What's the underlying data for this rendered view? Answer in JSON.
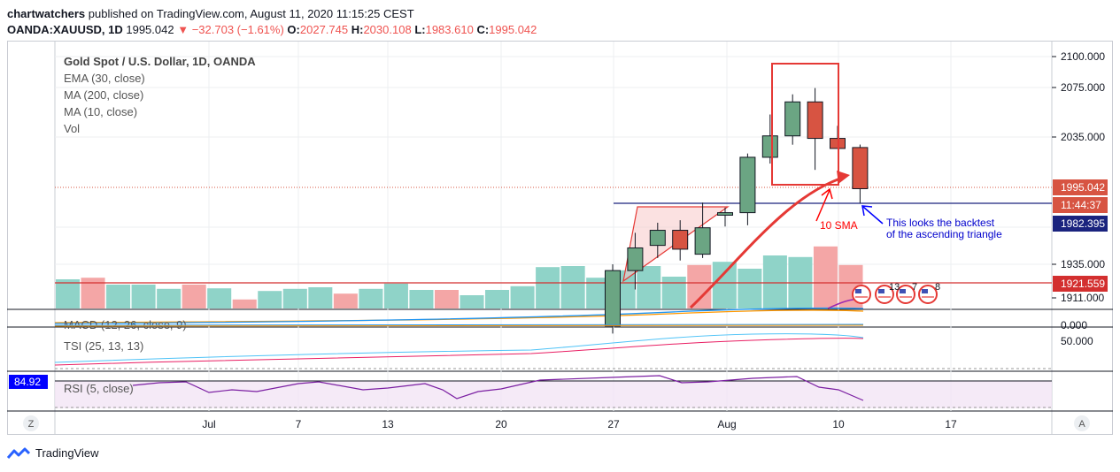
{
  "header": {
    "publisher": "chartwatchers",
    "published_text": "published on TradingView.com, August 11, 2020 11:15:25 CEST",
    "symbol": "OANDA:XAUUSD, 1D",
    "last": "1995.042",
    "change": "−32.703 (−1.61%)",
    "o_label": "O:",
    "o_value": "2027.745",
    "h_label": "H:",
    "h_value": "2030.108",
    "l_label": "L:",
    "l_value": "1983.610",
    "c_label": "C:",
    "c_value": "1995.042"
  },
  "legend": {
    "title": "Gold Spot / U.S. Dollar, 1D, OANDA",
    "ema": "EMA (30, close)",
    "ma200": "MA (200, close)",
    "ma10": "MA (10, close)",
    "vol": "Vol"
  },
  "indicators": {
    "macd": "MACD (12, 26, close, 9)",
    "tsi": "TSI (25, 13, 13)",
    "rsi": "RSI (5, close)"
  },
  "badges": {
    "last_price": "1995.042",
    "countdown": "11:44:37",
    "blue_level": "1982.395",
    "red_level": "1921.559",
    "macd_zero": "0.000",
    "tsi_level": "50.000",
    "rsi_value": "84.92"
  },
  "annotations": {
    "sma_label": "10 SMA",
    "note_line1": "This looks the backtest",
    "note_line2": "of the ascending triangle",
    "event_counts": [
      "13",
      "7",
      "8"
    ]
  },
  "corner_buttons": {
    "left": "Z",
    "right": "A"
  },
  "footer": {
    "brand": "TradingView"
  },
  "colors": {
    "up": "#6ba583",
    "down": "#d75442",
    "vol_up": "#8fd3c8",
    "vol_down": "#f4a6a6",
    "blue": "#0000ff",
    "red_annot": "#ff0000"
  },
  "chart_data": {
    "type": "candlestick",
    "y_ticks": [
      "2100.000",
      "2075.000",
      "2035.000",
      "1935.000",
      "1911.000"
    ],
    "x_ticks": [
      "Jul",
      "7",
      "13",
      "20",
      "27",
      "Aug",
      "10",
      "17"
    ],
    "candles": [
      {
        "o": 1886,
        "h": 1935,
        "l": 1880,
        "c": 1930,
        "dir": "up"
      },
      {
        "o": 1930,
        "h": 1960,
        "l": 1915,
        "c": 1948,
        "dir": "up"
      },
      {
        "o": 1950,
        "h": 1968,
        "l": 1940,
        "c": 1962,
        "dir": "up"
      },
      {
        "o": 1962,
        "h": 1970,
        "l": 1938,
        "c": 1947,
        "dir": "down"
      },
      {
        "o": 1943,
        "h": 1984,
        "l": 1940,
        "c": 1964,
        "dir": "up"
      },
      {
        "o": 1974,
        "h": 1980,
        "l": 1965,
        "c": 1976,
        "dir": "up"
      },
      {
        "o": 1976,
        "h": 2023,
        "l": 1966,
        "c": 2020,
        "dir": "up"
      },
      {
        "o": 2020,
        "h": 2054,
        "l": 2015,
        "c": 2037,
        "dir": "up"
      },
      {
        "o": 2037,
        "h": 2070,
        "l": 2030,
        "c": 2064,
        "dir": "up"
      },
      {
        "o": 2064,
        "h": 2075,
        "l": 2010,
        "c": 2035,
        "dir": "down"
      },
      {
        "o": 2035,
        "h": 2045,
        "l": 2027,
        "c": 2027,
        "dir": "down"
      },
      {
        "o": 2027.745,
        "h": 2030.108,
        "l": 1983.61,
        "c": 1995.042,
        "dir": "down"
      }
    ],
    "volume_bars": [
      {
        "v": 0.55,
        "dir": "up"
      },
      {
        "v": 0.58,
        "dir": "down"
      },
      {
        "v": 0.45,
        "dir": "up"
      },
      {
        "v": 0.45,
        "dir": "up"
      },
      {
        "v": 0.37,
        "dir": "up"
      },
      {
        "v": 0.45,
        "dir": "down"
      },
      {
        "v": 0.38,
        "dir": "up"
      },
      {
        "v": 0.17,
        "dir": "down"
      },
      {
        "v": 0.33,
        "dir": "up"
      },
      {
        "v": 0.37,
        "dir": "up"
      },
      {
        "v": 0.4,
        "dir": "up"
      },
      {
        "v": 0.28,
        "dir": "down"
      },
      {
        "v": 0.37,
        "dir": "up"
      },
      {
        "v": 0.47,
        "dir": "up"
      },
      {
        "v": 0.35,
        "dir": "up"
      },
      {
        "v": 0.35,
        "dir": "down"
      },
      {
        "v": 0.25,
        "dir": "up"
      },
      {
        "v": 0.35,
        "dir": "up"
      },
      {
        "v": 0.42,
        "dir": "up"
      },
      {
        "v": 0.78,
        "dir": "up"
      },
      {
        "v": 0.8,
        "dir": "up"
      },
      {
        "v": 0.58,
        "dir": "up"
      },
      {
        "v": 0.72,
        "dir": "up"
      },
      {
        "v": 0.8,
        "dir": "up"
      },
      {
        "v": 0.6,
        "dir": "up"
      },
      {
        "v": 0.82,
        "dir": "down"
      },
      {
        "v": 0.88,
        "dir": "up"
      },
      {
        "v": 0.75,
        "dir": "up"
      },
      {
        "v": 1.0,
        "dir": "up"
      },
      {
        "v": 0.97,
        "dir": "up"
      },
      {
        "v": 1.17,
        "dir": "down"
      },
      {
        "v": 0.82,
        "dir": "down"
      }
    ],
    "levels": {
      "red": 1921.559,
      "blue": 1982.395,
      "last": 1995.042
    }
  }
}
